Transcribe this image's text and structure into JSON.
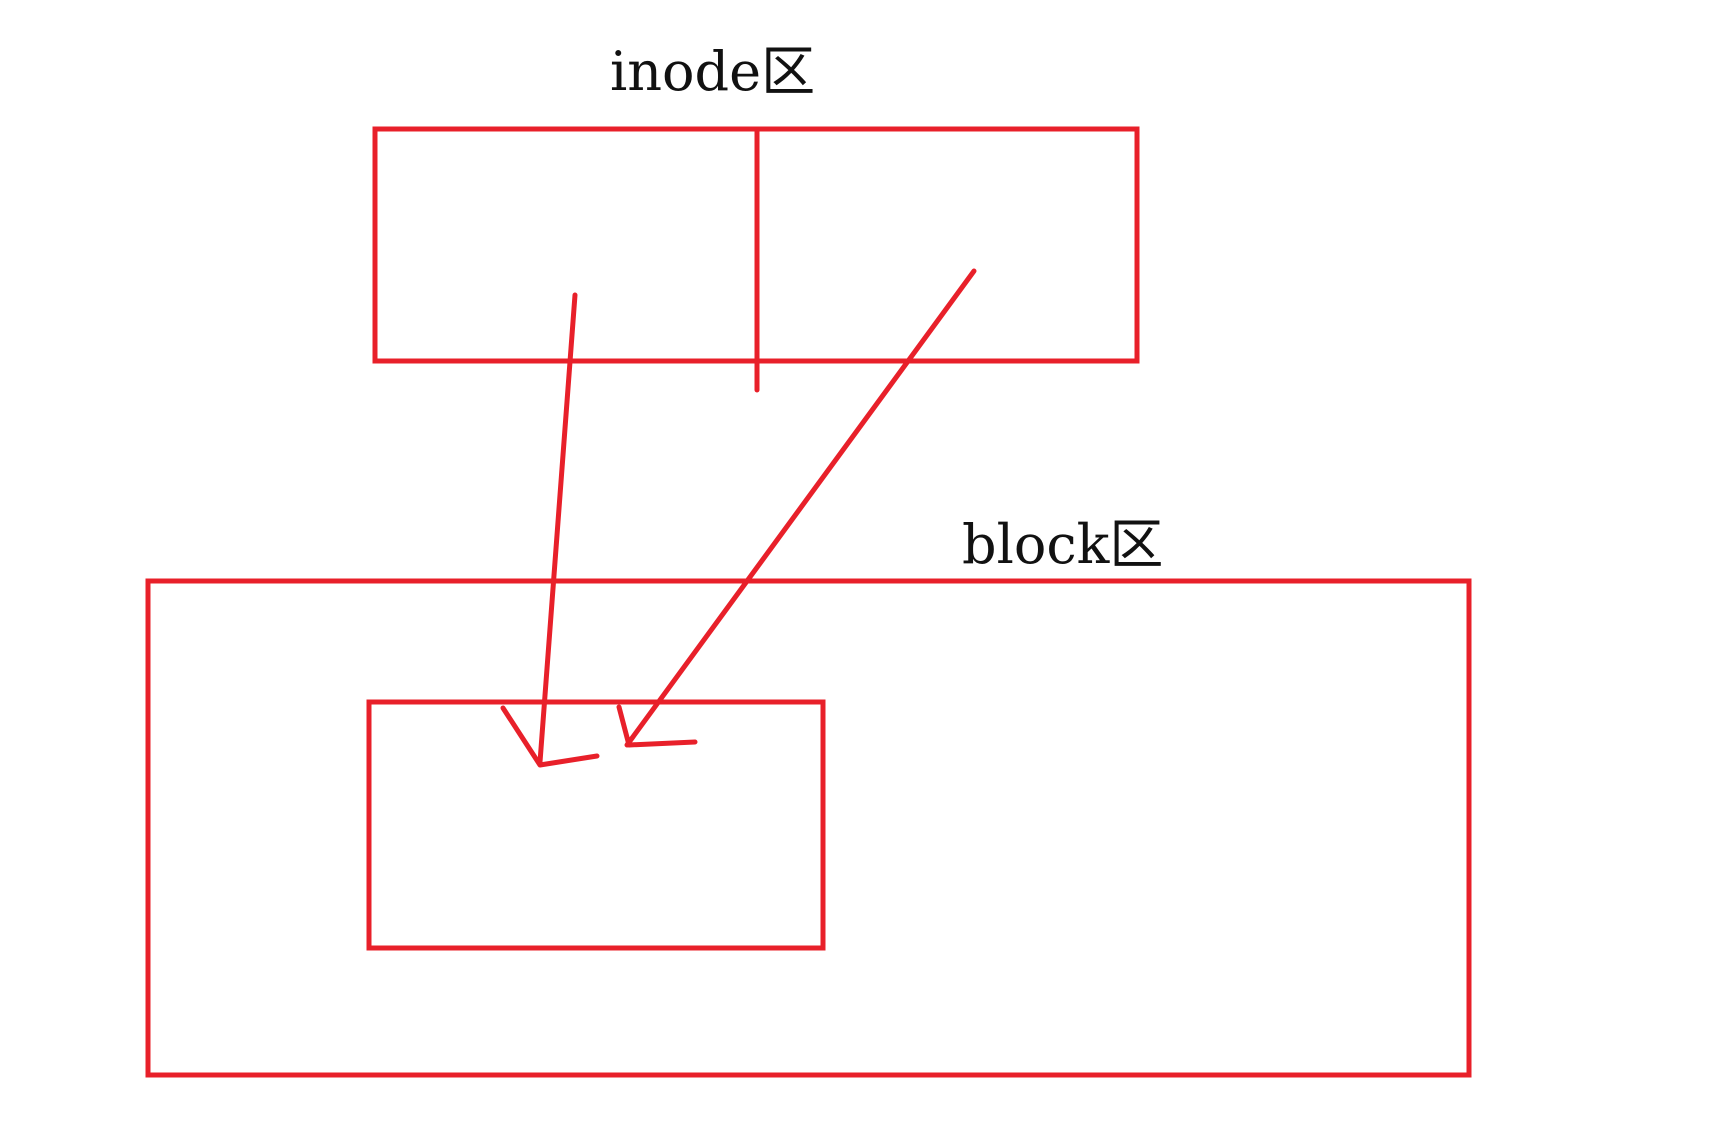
{
  "labels": {
    "inode_region": "inode区",
    "block_region": "block区"
  },
  "colors": {
    "stroke": "#e8202a",
    "text": "#111111",
    "background": "#ffffff"
  }
}
